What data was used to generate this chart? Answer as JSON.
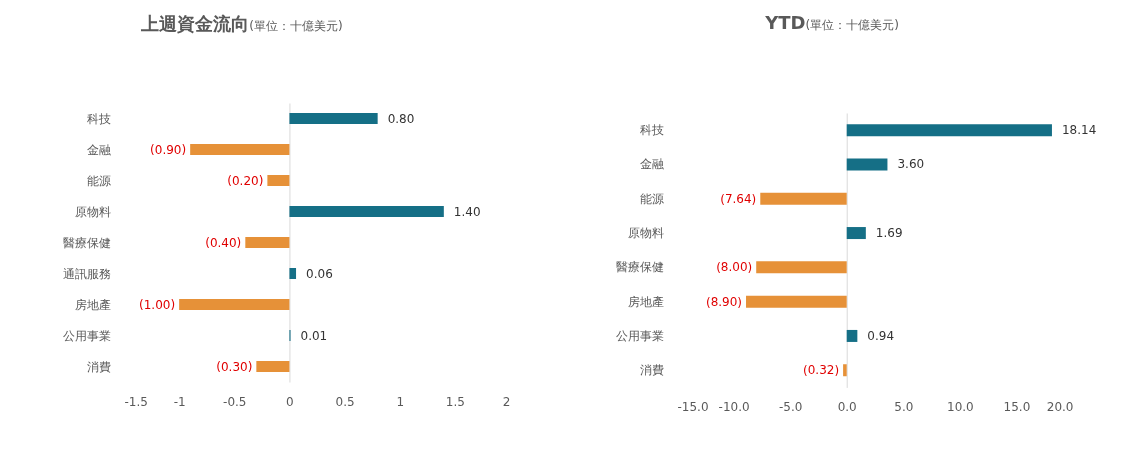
{
  "chart_data": [
    {
      "type": "bar",
      "orientation": "horizontal",
      "title": "上週資金流向",
      "subtitle": "(單位：十億美元)",
      "categories": [
        "科技",
        "金融",
        "能源",
        "原物料",
        "醫療保健",
        "通訊服務",
        "房地產",
        "公用事業",
        "消費"
      ],
      "values": [
        0.8,
        -0.9,
        -0.2,
        1.4,
        -0.4,
        0.06,
        -1.0,
        0.01,
        -0.3
      ],
      "colors": [
        "#156f86",
        "#e69138",
        "#e69138",
        "#156f86",
        "#e69138",
        "#156f86",
        "#e69138",
        "#156f86",
        "#e69138"
      ],
      "value_labels": [
        "0.80",
        "(0.90)",
        "(0.20)",
        "1.40",
        "(0.40)",
        "0.06",
        "(1.00)",
        "0.01",
        "(0.30)"
      ],
      "xlim": [
        -1.5,
        2
      ],
      "xticks": [
        -1.5,
        -1,
        -0.5,
        0,
        0.5,
        1,
        1.5,
        2
      ]
    },
    {
      "type": "bar",
      "orientation": "horizontal",
      "title": "YTD",
      "subtitle": "(單位：十億美元)",
      "categories": [
        "科技",
        "金融",
        "能源",
        "原物料",
        "醫療保健",
        "房地產",
        "公用事業",
        "消費"
      ],
      "values": [
        18.14,
        3.6,
        -7.64,
        1.69,
        -8.0,
        -8.9,
        0.94,
        -0.32
      ],
      "colors": [
        "#156f86",
        "#156f86",
        "#e69138",
        "#156f86",
        "#e69138",
        "#e69138",
        "#156f86",
        "#e69138"
      ],
      "value_labels": [
        "18.14",
        "3.60",
        "(7.64)",
        "1.69",
        "(8.00)",
        "(8.90)",
        "0.94",
        "(0.32)"
      ],
      "xlim": [
        -15,
        20
      ],
      "xticks": [
        {
          "value": -15,
          "label": "-15.0"
        },
        {
          "value": -10,
          "label": "-10.0"
        },
        {
          "value": -5,
          "label": "-5.0"
        },
        {
          "value": 0,
          "label": "0.0"
        },
        {
          "value": 5,
          "label": "5.0"
        },
        {
          "value": 10,
          "label": "10.0"
        },
        {
          "value": 15,
          "label": "15.0"
        },
        {
          "value": 20,
          "label": "20.0"
        }
      ]
    }
  ]
}
